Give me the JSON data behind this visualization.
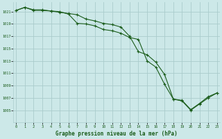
{
  "bg_color": "#cce8e8",
  "grid_color": "#aacccc",
  "line_color": "#1a5c1a",
  "ylabel_values": [
    1005,
    1007,
    1009,
    1011,
    1013,
    1015,
    1017,
    1019,
    1021
  ],
  "xlabel_label": "Graphe pression niveau de la mer (hPa)",
  "x_ticks": [
    0,
    1,
    2,
    3,
    4,
    5,
    6,
    7,
    8,
    9,
    10,
    11,
    12,
    13,
    14,
    15,
    16,
    17,
    18,
    19,
    20,
    21,
    22,
    23
  ],
  "line1_x": [
    0,
    1,
    2,
    3,
    4,
    5,
    6,
    7,
    8,
    9,
    10,
    11,
    12,
    13,
    14,
    15,
    16,
    17,
    18,
    19,
    20,
    21,
    22,
    23
  ],
  "line1_y": [
    1021.2,
    1021.7,
    1021.3,
    1021.3,
    1021.1,
    1020.9,
    1020.7,
    1020.5,
    1019.8,
    1019.5,
    1019.1,
    1018.9,
    1018.5,
    1017.0,
    1014.5,
    1014.0,
    1012.8,
    1010.8,
    1006.8,
    1006.6,
    1005.1,
    1006.1,
    1007.2,
    1007.8
  ],
  "line2_x": [
    0,
    1,
    2,
    3,
    4,
    5,
    6,
    7,
    8,
    9,
    10,
    11,
    12,
    13,
    14,
    15,
    16,
    17,
    18,
    19,
    20,
    21,
    22,
    23
  ],
  "line2_y": [
    1021.2,
    1021.7,
    1021.2,
    1021.2,
    1021.1,
    1021.0,
    1020.6,
    1019.1,
    1019.0,
    1018.7,
    1018.1,
    1017.9,
    1017.5,
    1016.8,
    1016.5,
    1013.0,
    1012.0,
    1009.2,
    1006.8,
    1006.5,
    1005.0,
    1006.0,
    1007.0,
    1007.8
  ],
  "ylim": [
    1003.0,
    1022.5
  ],
  "xlim": [
    -0.3,
    23.3
  ],
  "figsize": [
    3.2,
    2.0
  ],
  "dpi": 100
}
